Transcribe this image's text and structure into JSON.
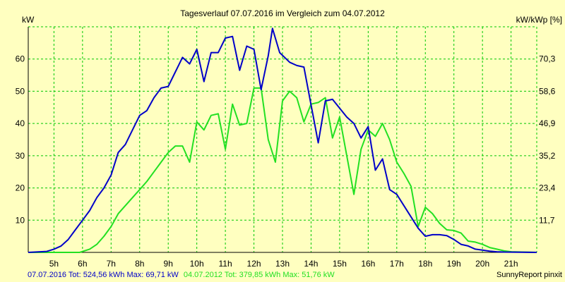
{
  "colors": {
    "background": "#ffffc0",
    "grid": "#00c800",
    "series2016": "#0000c8",
    "series2012": "#22e022"
  },
  "chart_data": {
    "type": "line",
    "title": "Tagesverlauf 07.07.2016 im Vergleich zum 04.07.2012",
    "ylabel_left": "kW",
    "ylabel_right": "kW/kWp [%]",
    "x_ticks": [
      "5h",
      "6h",
      "7h",
      "8h",
      "9h",
      "10h",
      "11h",
      "12h",
      "13h",
      "14h",
      "15h",
      "16h",
      "17h",
      "18h",
      "19h",
      "20h",
      "21h"
    ],
    "x_range": [
      4.1,
      21.9
    ],
    "y_range": [
      0,
      70
    ],
    "y_ticks_left": [
      10,
      20,
      30,
      40,
      50,
      60
    ],
    "y_ticks_right": [
      "11,7",
      "23,4",
      "35,2",
      "46,9",
      "58,6",
      "70,3"
    ],
    "grid": true,
    "series": [
      {
        "name": "07.07.2016",
        "color": "#0000c8",
        "points": [
          [
            4.1,
            0
          ],
          [
            4.75,
            0.3
          ],
          [
            5,
            1
          ],
          [
            5.25,
            2
          ],
          [
            5.5,
            4
          ],
          [
            5.75,
            7
          ],
          [
            6,
            10
          ],
          [
            6.25,
            13
          ],
          [
            6.5,
            17
          ],
          [
            6.75,
            20
          ],
          [
            7,
            24
          ],
          [
            7.25,
            31
          ],
          [
            7.5,
            33.5
          ],
          [
            7.75,
            38
          ],
          [
            8,
            42.5
          ],
          [
            8.25,
            44
          ],
          [
            8.5,
            48
          ],
          [
            8.75,
            51
          ],
          [
            9,
            51.5
          ],
          [
            9.25,
            56
          ],
          [
            9.5,
            60.5
          ],
          [
            9.75,
            58.5
          ],
          [
            10,
            63
          ],
          [
            10.25,
            53
          ],
          [
            10.5,
            62
          ],
          [
            10.75,
            62
          ],
          [
            11,
            66.5
          ],
          [
            11.25,
            67
          ],
          [
            11.5,
            56.5
          ],
          [
            11.75,
            64
          ],
          [
            12,
            63
          ],
          [
            12.25,
            50.5
          ],
          [
            12.5,
            61
          ],
          [
            12.65,
            69.5
          ],
          [
            12.9,
            62
          ],
          [
            13.25,
            59
          ],
          [
            13.5,
            58
          ],
          [
            13.75,
            57.5
          ],
          [
            14.25,
            34
          ],
          [
            14.5,
            47
          ],
          [
            14.75,
            47.5
          ],
          [
            15.25,
            42
          ],
          [
            15.5,
            40
          ],
          [
            15.75,
            35.5
          ],
          [
            16,
            39
          ],
          [
            16.25,
            25.5
          ],
          [
            16.5,
            29
          ],
          [
            16.75,
            19.5
          ],
          [
            17,
            18
          ],
          [
            17.25,
            14.5
          ],
          [
            17.5,
            11
          ],
          [
            17.75,
            7.5
          ],
          [
            18,
            5
          ],
          [
            18.25,
            5.5
          ],
          [
            18.5,
            5.5
          ],
          [
            18.75,
            5.2
          ],
          [
            19,
            4
          ],
          [
            19.25,
            2.5
          ],
          [
            19.5,
            2
          ],
          [
            19.75,
            1
          ],
          [
            20,
            0.7
          ],
          [
            20.25,
            0.4
          ],
          [
            20.5,
            0.2
          ],
          [
            20.75,
            0.1
          ],
          [
            21.9,
            0
          ]
        ]
      },
      {
        "name": "04.07.2012",
        "color": "#22e022",
        "points": [
          [
            4.1,
            0
          ],
          [
            5.9,
            0
          ],
          [
            6.25,
            1
          ],
          [
            6.5,
            2.5
          ],
          [
            6.75,
            5
          ],
          [
            7,
            8
          ],
          [
            7.25,
            12
          ],
          [
            7.5,
            14.5
          ],
          [
            7.75,
            17
          ],
          [
            8,
            19.5
          ],
          [
            8.25,
            22
          ],
          [
            8.5,
            25
          ],
          [
            8.75,
            28
          ],
          [
            9,
            31
          ],
          [
            9.25,
            33
          ],
          [
            9.5,
            33
          ],
          [
            9.75,
            28
          ],
          [
            10,
            40.5
          ],
          [
            10.25,
            38
          ],
          [
            10.5,
            42.5
          ],
          [
            10.75,
            43
          ],
          [
            11,
            32
          ],
          [
            11.25,
            46
          ],
          [
            11.5,
            39.5
          ],
          [
            11.75,
            40
          ],
          [
            12,
            51
          ],
          [
            12.25,
            51
          ],
          [
            12.5,
            35
          ],
          [
            12.75,
            28
          ],
          [
            13,
            47
          ],
          [
            13.25,
            50
          ],
          [
            13.5,
            48
          ],
          [
            13.75,
            40.5
          ],
          [
            14,
            46
          ],
          [
            14.25,
            46.5
          ],
          [
            14.5,
            48
          ],
          [
            14.75,
            35.5
          ],
          [
            15,
            42
          ],
          [
            15.5,
            18
          ],
          [
            15.75,
            32
          ],
          [
            16,
            38
          ],
          [
            16.25,
            36
          ],
          [
            16.5,
            40
          ],
          [
            16.75,
            35
          ],
          [
            17,
            28
          ],
          [
            17.25,
            24.5
          ],
          [
            17.5,
            20.5
          ],
          [
            17.75,
            8
          ],
          [
            18,
            14
          ],
          [
            18.25,
            12
          ],
          [
            18.5,
            9
          ],
          [
            18.75,
            7
          ],
          [
            19,
            6.8
          ],
          [
            19.25,
            6
          ],
          [
            19.5,
            3.5
          ],
          [
            19.75,
            3.2
          ],
          [
            20,
            2.5
          ],
          [
            20.25,
            1.5
          ],
          [
            20.5,
            1
          ],
          [
            20.75,
            0.5
          ],
          [
            21,
            0.2
          ],
          [
            21.9,
            0
          ]
        ]
      }
    ]
  },
  "footer": {
    "series2016_label": "07.07.2016 Tot: 524,56 kWh Max: 69,71 kW",
    "series2012_label": "04.07.2012 Tot: 379,85 kWh Max: 51,76 kW",
    "credit": "SunnyReport pinxit"
  }
}
